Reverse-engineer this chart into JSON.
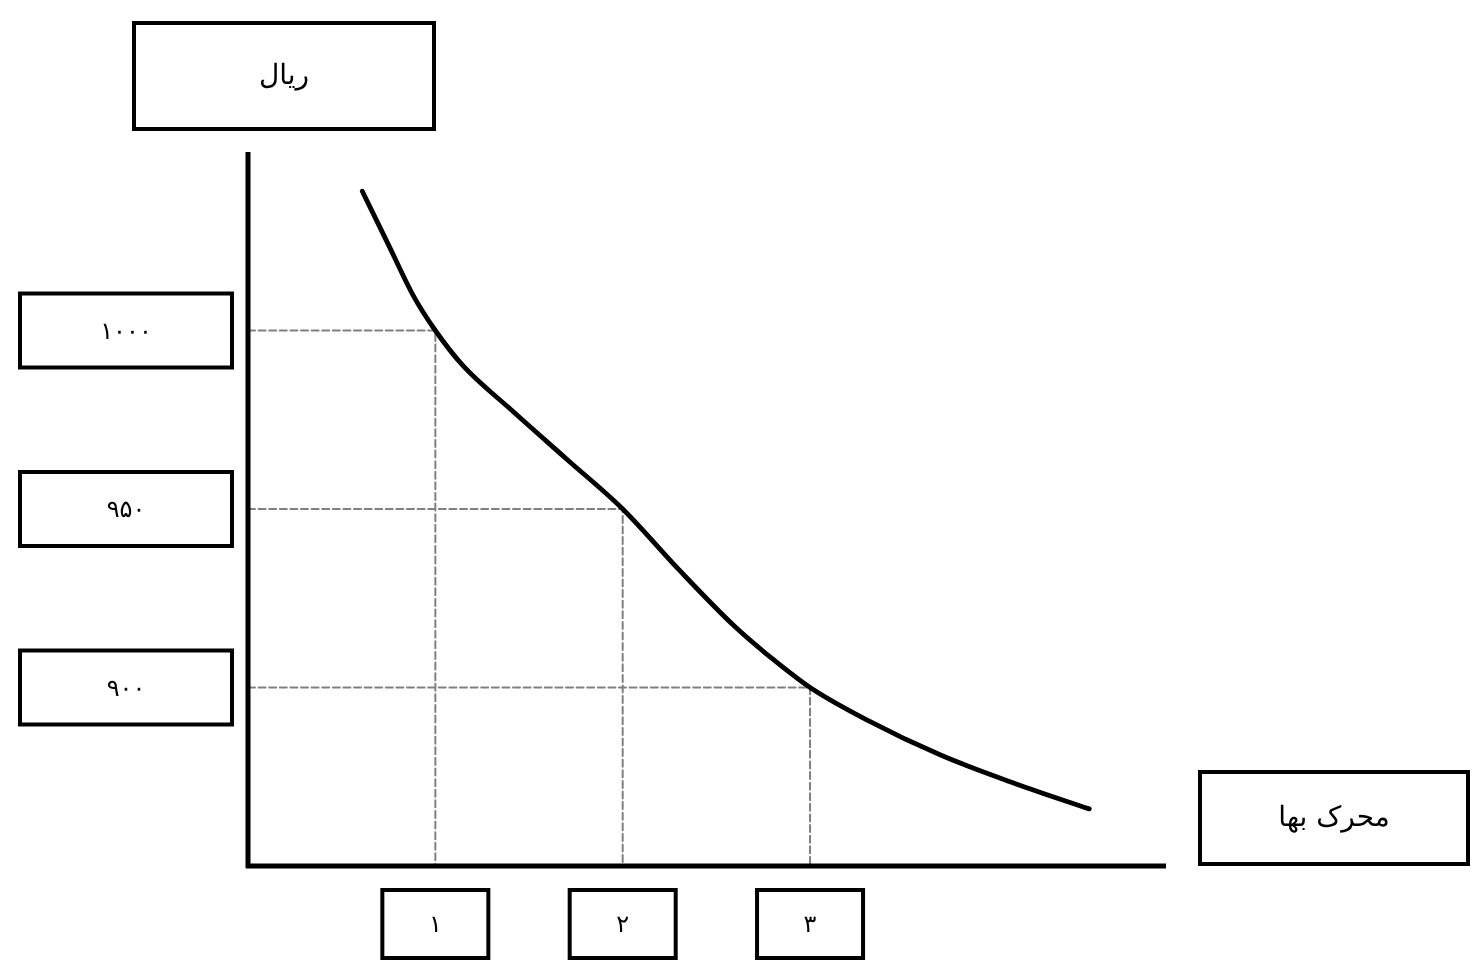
{
  "chart_data": {
    "type": "line",
    "xlabel": "محرک بها",
    "ylabel": "ریال",
    "xlim": [
      0,
      4.9
    ],
    "ylim": [
      850,
      1050
    ],
    "xticks": [
      {
        "value": 1,
        "label": "۱"
      },
      {
        "value": 2,
        "label": "۲"
      },
      {
        "value": 3,
        "label": "۳"
      }
    ],
    "yticks": [
      {
        "value": 900,
        "label": "۹۰۰"
      },
      {
        "value": 950,
        "label": "۹۵۰"
      },
      {
        "value": 1000,
        "label": "۱۰۰۰"
      }
    ],
    "series": [
      {
        "color": "#000000",
        "line_style": "solid",
        "x": [
          0.61,
          0.75,
          0.88,
          1.0,
          1.15,
          1.4,
          1.7,
          2.0,
          2.3,
          2.6,
          2.8,
          3.0,
          3.3,
          3.7,
          4.1,
          4.49
        ],
        "values": [
          1039,
          1024,
          1010,
          1000,
          990,
          978,
          964,
          950,
          933,
          917,
          908,
          900,
          891,
          881,
          873,
          866
        ]
      },
      {
        "color": "#808080",
        "line_style": "dashed",
        "x": [
          0,
          1,
          1
        ],
        "values": [
          1000,
          1000,
          850
        ]
      },
      {
        "color": "#808080",
        "line_style": "dashed",
        "x": [
          0,
          2,
          2
        ],
        "values": [
          950,
          950,
          850
        ]
      },
      {
        "color": "#808080",
        "line_style": "dashed",
        "x": [
          0,
          3,
          3
        ],
        "values": [
          900,
          900,
          850
        ]
      }
    ]
  }
}
